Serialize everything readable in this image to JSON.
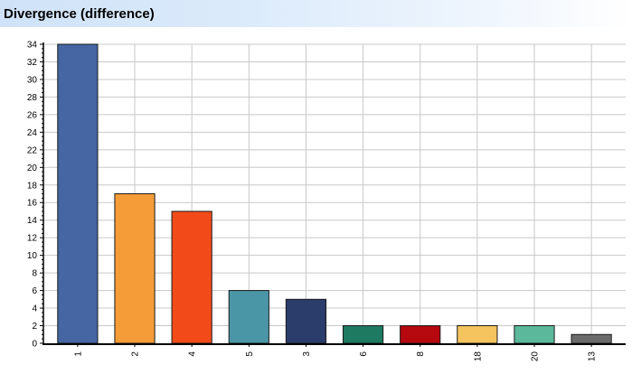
{
  "header": {
    "title": "Divergence (difference)"
  },
  "chart_data": {
    "type": "bar",
    "title": "Divergence (difference)",
    "xlabel": "",
    "ylabel": "",
    "categories": [
      "1",
      "2",
      "4",
      "5",
      "3",
      "6",
      "8",
      "18",
      "20",
      "13"
    ],
    "values": [
      34,
      17,
      15,
      6,
      5,
      2,
      2,
      2,
      2,
      1
    ],
    "colors": [
      "#4566a3",
      "#f59c38",
      "#f24b19",
      "#4a96a6",
      "#2b3d6b",
      "#1f7a62",
      "#b5080f",
      "#f5c45e",
      "#5bb89b",
      "#6b6b6b"
    ],
    "ylim": [
      0,
      34
    ],
    "yticks": [
      0,
      2,
      4,
      6,
      8,
      10,
      12,
      14,
      16,
      18,
      20,
      22,
      24,
      26,
      28,
      30,
      32,
      34
    ],
    "grid": true,
    "legend": "none"
  }
}
